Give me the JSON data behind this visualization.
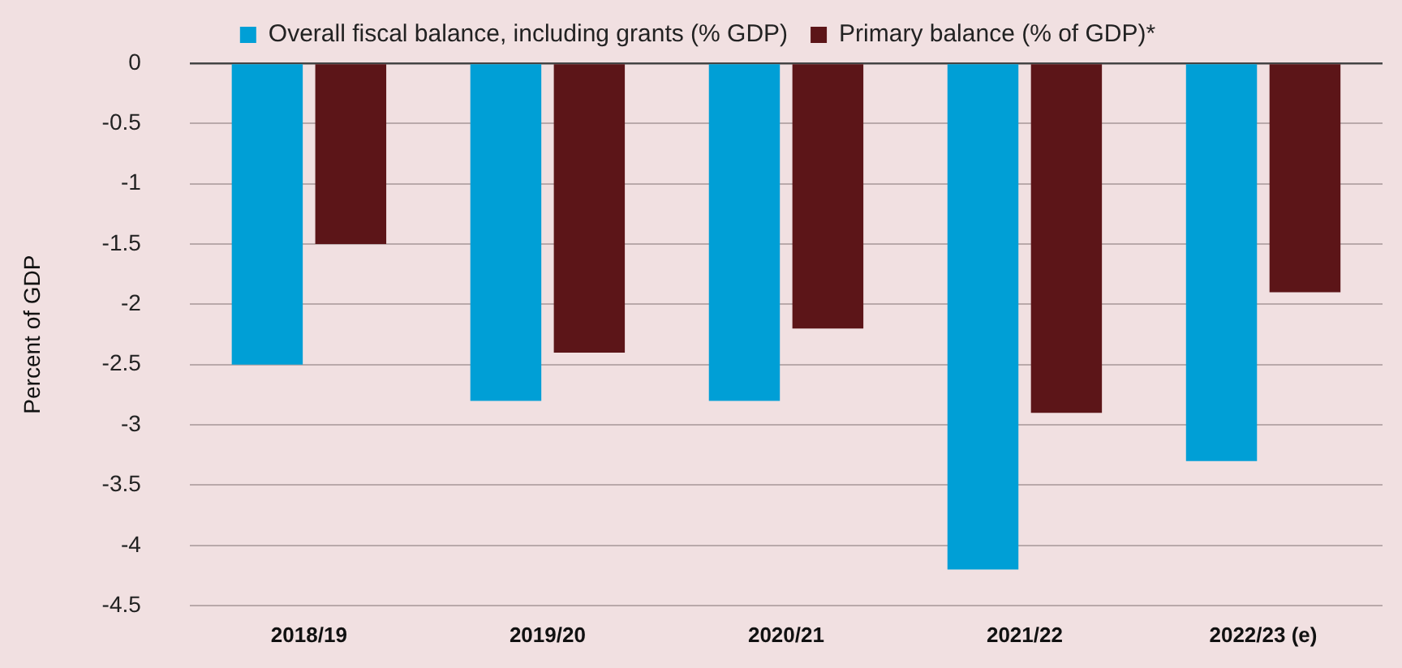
{
  "chart_data": {
    "type": "bar",
    "ylabel": "Percent of GDP",
    "categories": [
      "2018/19",
      "2019/20",
      "2020/21",
      "2021/22",
      "2022/23 (e)"
    ],
    "series": [
      {
        "name": "Overall fiscal balance, including grants (% GDP)",
        "color": "#009fd6",
        "values": [
          -2.5,
          -2.8,
          -2.8,
          -4.2,
          -3.3
        ]
      },
      {
        "name": "Primary balance (% of GDP)*",
        "color": "#5c1518",
        "values": [
          -1.5,
          -2.4,
          -2.2,
          -2.9,
          -1.9
        ]
      }
    ],
    "ylim": [
      -4.5,
      0
    ],
    "yticks": [
      0,
      -0.5,
      -1,
      -1.5,
      -2,
      -2.5,
      -3,
      -3.5,
      -4,
      -4.5
    ],
    "grid": "y",
    "legend": "top"
  }
}
